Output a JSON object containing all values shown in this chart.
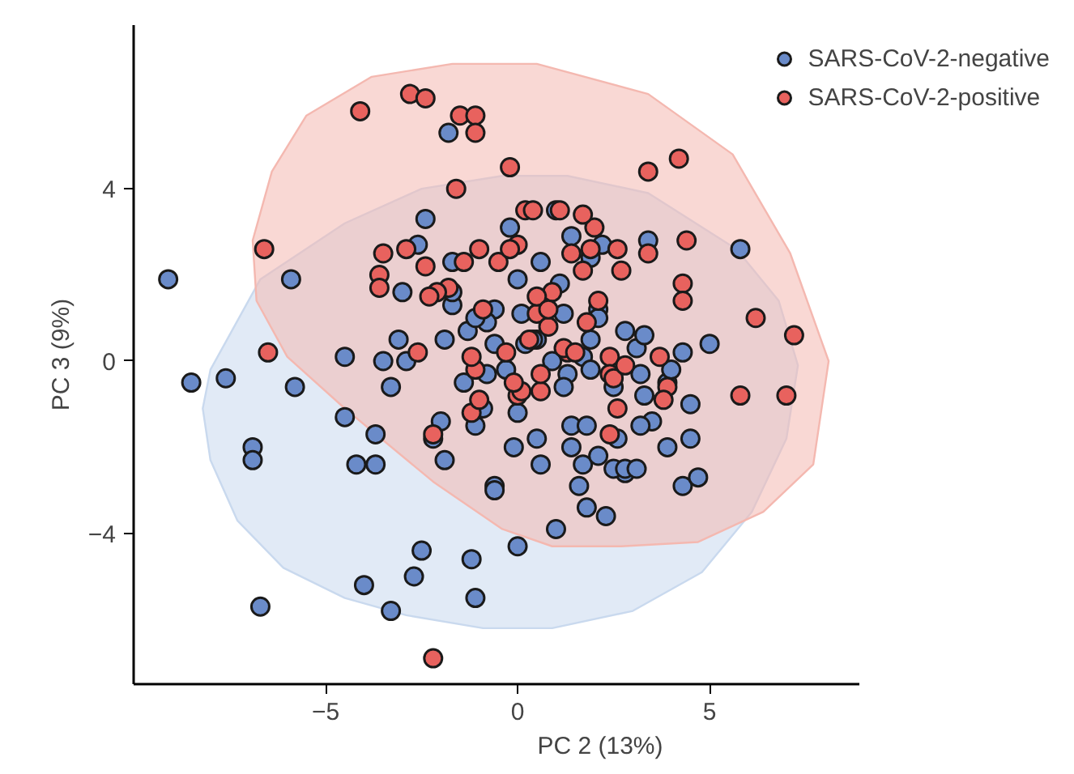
{
  "chart_data": {
    "type": "scatter",
    "xlabel": "PC 2 (13%)",
    "ylabel": "PC 3 (9%)",
    "xlim": [
      -10,
      8.9
    ],
    "ylim": [
      -7.5,
      7.8
    ],
    "xticks": [
      {
        "value": -5,
        "label": "−5"
      },
      0,
      5
    ],
    "yticks": [
      {
        "value": -4,
        "label": "−4"
      },
      0,
      4
    ],
    "grid": false,
    "legend": "top right",
    "series": [
      {
        "type": "area",
        "color": "#c9d9ee",
        "x": [
          -8.2,
          -8.0,
          -6.7,
          -4.5,
          -2.5,
          -0.4,
          1.3,
          3.4,
          5.7,
          6.8,
          7.3,
          7.0,
          6.1,
          4.8,
          3.0,
          0.9,
          -0.9,
          -2.9,
          -4.5,
          -6.1,
          -7.3,
          -8.0
        ],
        "values": [
          -1.1,
          -0.2,
          1.9,
          3.2,
          4.0,
          4.3,
          4.3,
          3.9,
          2.6,
          1.4,
          -0.1,
          -1.8,
          -3.5,
          -4.9,
          -5.8,
          -6.2,
          -6.2,
          -5.9,
          -5.5,
          -4.8,
          -3.7,
          -2.3
        ]
      },
      {
        "type": "area",
        "color": "#f4b8b0",
        "x": [
          -6.9,
          -6.4,
          -5.5,
          -3.8,
          -1.7,
          0.5,
          3.4,
          5.6,
          7.1,
          8.1,
          7.7,
          6.4,
          4.7,
          2.7,
          0.9,
          -0.4,
          -2.2,
          -4.5,
          -6.0,
          -6.8
        ],
        "values": [
          2.8,
          4.4,
          5.7,
          6.6,
          6.9,
          6.9,
          6.2,
          4.8,
          2.5,
          0.0,
          -2.4,
          -3.5,
          -4.2,
          -4.3,
          -4.3,
          -3.9,
          -2.8,
          -1.1,
          0.1,
          1.4
        ]
      },
      {
        "name": "SARS-CoV-2-negative",
        "color": "#6a8bc9",
        "marker": "circle",
        "x": [
          -9.1,
          -8.5,
          -7.6,
          -5.9,
          -5.8,
          -6.9,
          -6.9,
          -6.7,
          -4.5,
          -4.5,
          -4.2,
          -3.7,
          -3.7,
          -4.0,
          -3.3,
          -2.7,
          -2.5,
          -1.2,
          -1.1,
          0.0,
          -2.6,
          -2.4,
          -1.7,
          -3.0,
          -3.3,
          -3.5,
          -2.9,
          -1.9,
          -1.7,
          -2.2,
          -1.9,
          -1.1,
          -1.4,
          -0.9,
          0.0,
          -0.6,
          -0.6,
          -0.6,
          0.0,
          -0.2,
          0.6,
          0.5,
          0.9,
          1.1,
          1.2,
          1.3,
          1.7,
          1.9,
          1.4,
          1.7,
          1.4,
          1.6,
          1.0,
          1.2,
          2.5,
          3.1,
          3.3,
          3.5,
          3.9,
          4.3,
          5.0,
          4.5,
          4.3,
          4.7,
          4.5,
          2.6,
          2.8,
          1.8,
          1.9,
          0.4,
          0.2,
          1.9,
          2.2,
          3.2,
          2.1,
          2.8,
          3.3,
          3.9,
          4.0,
          1.8,
          2.3,
          2.5,
          3.2,
          2.1,
          0.5,
          0.6,
          -1.7,
          -0.8,
          -0.3,
          -2.0,
          -0.1,
          5.8,
          -1.8,
          -1.3,
          -0.8,
          3.4,
          1.0,
          1.4,
          2.1,
          -0.6,
          -3.1,
          -1.1,
          0.1,
          2.8,
          3.1
        ],
        "values": [
          1.9,
          -0.5,
          -0.4,
          1.9,
          -0.6,
          -2.0,
          -2.3,
          -5.7,
          0.1,
          -1.3,
          -2.4,
          -2.4,
          -1.7,
          -5.2,
          -5.8,
          -5.0,
          -4.4,
          -4.6,
          -5.5,
          -4.3,
          2.7,
          3.3,
          2.3,
          1.6,
          -0.6,
          0.0,
          0.0,
          0.5,
          1.3,
          -1.8,
          -2.3,
          -1.5,
          -0.5,
          -1.1,
          -1.2,
          -2.9,
          1.2,
          0.4,
          1.9,
          3.1,
          2.3,
          0.5,
          0.0,
          1.8,
          1.1,
          -0.3,
          0.1,
          0.5,
          -1.5,
          -2.4,
          -2.0,
          -2.9,
          -3.9,
          -0.6,
          -0.6,
          0.3,
          -0.8,
          -1.4,
          -0.5,
          0.2,
          0.4,
          -1.8,
          -2.9,
          -2.7,
          -1.0,
          -1.8,
          -2.6,
          -1.5,
          -0.2,
          0.5,
          0.4,
          2.4,
          2.7,
          -0.3,
          1.2,
          0.7,
          0.6,
          -2.0,
          -0.2,
          -3.4,
          -3.6,
          -2.5,
          -1.5,
          -2.2,
          -1.8,
          -2.4,
          1.6,
          -0.3,
          -0.2,
          -1.4,
          -2.0,
          2.6,
          5.3,
          0.7,
          0.9,
          2.8,
          3.5,
          2.9,
          1.0,
          -3.0,
          0.5,
          1.0,
          1.1,
          -2.5,
          -2.5
        ]
      },
      {
        "name": "SARS-CoV-2-positive",
        "color": "#e8625e",
        "marker": "circle",
        "x": [
          -4.1,
          -2.8,
          -2.4,
          -1.5,
          -1.1,
          -1.1,
          -2.9,
          -1.6,
          -0.2,
          0.2,
          0.4,
          2.0,
          1.1,
          0.0,
          -2.4,
          -3.5,
          -3.6,
          -3.6,
          -6.6,
          -6.5,
          -2.6,
          -1.8,
          -2.1,
          -0.9,
          -1.2,
          -1.0,
          0.0,
          -2.2,
          -2.2,
          1.7,
          3.4,
          4.2,
          4.4,
          3.4,
          2.6,
          2.7,
          4.3,
          4.3,
          6.2,
          7.2,
          7.0,
          5.8,
          0.5,
          0.3,
          -0.3,
          0.8,
          1.3,
          0.6,
          0.1,
          1.2,
          1.5,
          1.8,
          2.4,
          2.4,
          2.5,
          2.8,
          0.9,
          0.5,
          0.8,
          -0.5,
          -0.2,
          1.7,
          -1.0,
          -1.4,
          -2.3,
          0.6,
          1.9,
          2.1,
          2.4,
          -0.1,
          3.9,
          3.8,
          3.7,
          -1.1,
          -1.2,
          1.4,
          2.6
        ],
        "values": [
          5.8,
          6.2,
          6.1,
          5.7,
          5.7,
          5.3,
          2.6,
          4.0,
          4.5,
          3.5,
          3.5,
          3.1,
          3.5,
          2.7,
          2.2,
          2.5,
          2.0,
          1.7,
          2.6,
          0.2,
          0.2,
          1.7,
          1.6,
          1.2,
          -1.2,
          -0.9,
          -0.8,
          -1.7,
          -6.9,
          3.4,
          4.4,
          4.7,
          2.8,
          2.5,
          2.6,
          2.1,
          1.8,
          1.4,
          1.0,
          0.6,
          -0.8,
          -0.8,
          1.1,
          0.5,
          0.2,
          0.8,
          0.2,
          -0.7,
          -0.7,
          0.3,
          0.2,
          0.9,
          0.1,
          -0.3,
          -0.4,
          -0.1,
          1.6,
          1.5,
          1.2,
          2.3,
          2.6,
          2.1,
          2.6,
          2.3,
          1.5,
          -0.3,
          2.6,
          1.4,
          -1.7,
          -0.5,
          -0.6,
          -0.9,
          0.1,
          -0.2,
          0.1,
          2.5,
          -1.1
        ]
      }
    ]
  }
}
